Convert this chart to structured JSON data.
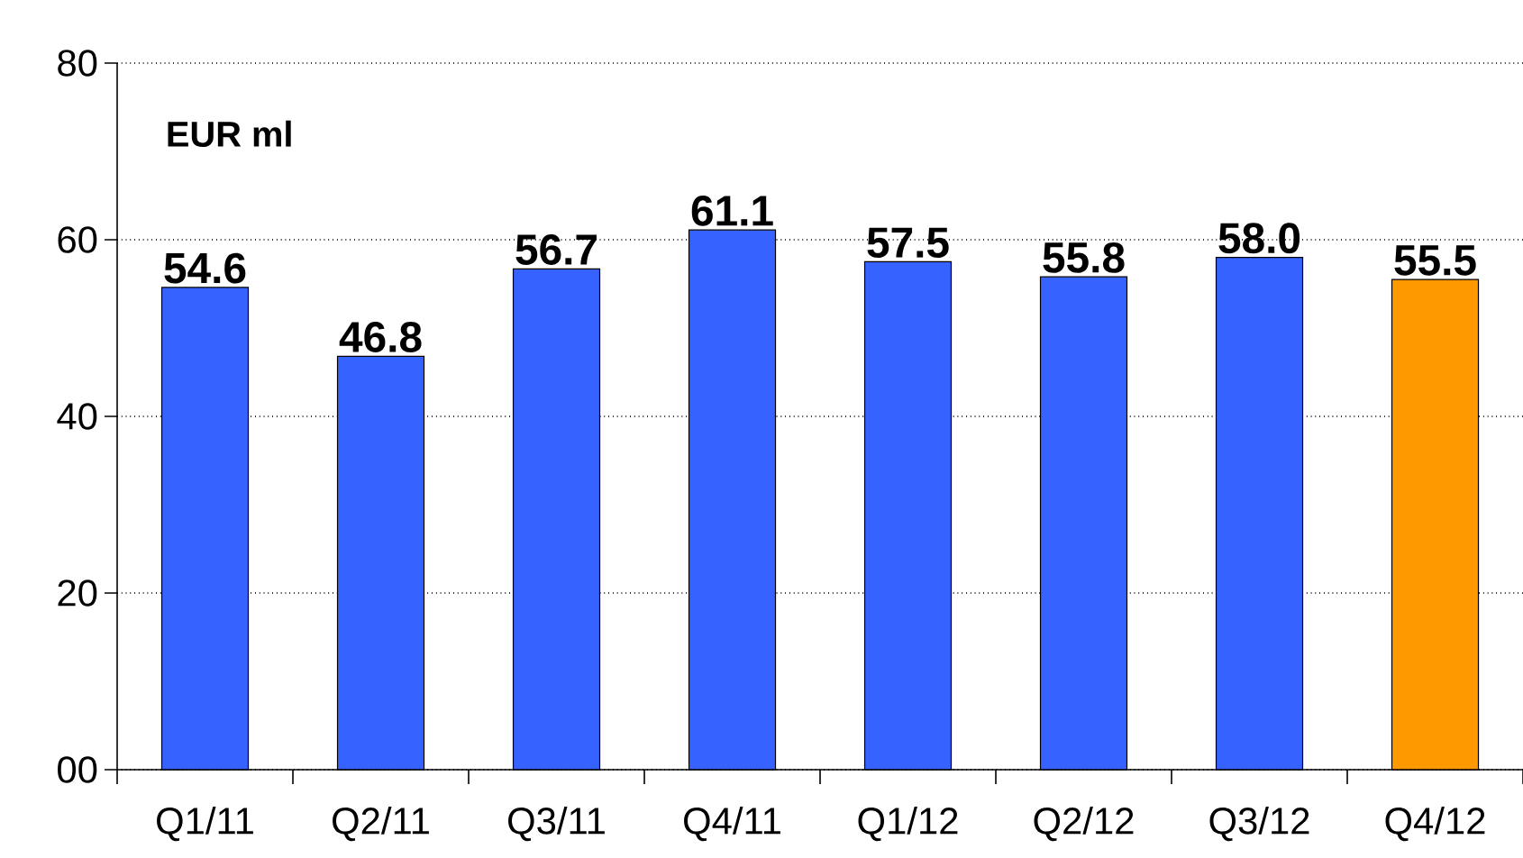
{
  "chart_data": {
    "type": "bar",
    "categories": [
      "Q1/11",
      "Q2/11",
      "Q3/11",
      "Q4/11",
      "Q1/12",
      "Q2/12",
      "Q3/12",
      "Q4/12"
    ],
    "values": [
      54.6,
      46.8,
      56.7,
      61.1,
      57.5,
      55.8,
      58.0,
      55.5
    ],
    "colors": [
      "#3662ff",
      "#3662ff",
      "#3662ff",
      "#3662ff",
      "#3662ff",
      "#3662ff",
      "#3662ff",
      "#ff9900"
    ],
    "value_labels": [
      "54.6",
      "46.8",
      "56.7",
      "61.1",
      "57.5",
      "55.8",
      "58.0",
      "55.5"
    ],
    "annotations": [
      "EUR ml"
    ],
    "ylim": [
      0,
      80
    ],
    "yticks": [
      {
        "value": 0,
        "label": "00"
      },
      20,
      40,
      60,
      80
    ],
    "grid": "y"
  }
}
